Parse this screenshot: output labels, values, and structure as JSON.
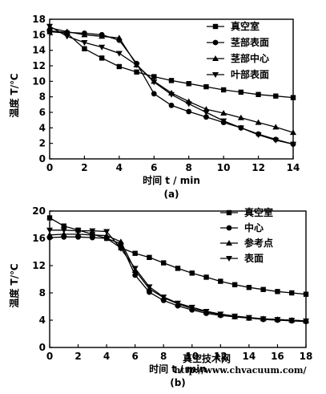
{
  "chart_data": [
    {
      "type": "line",
      "panel": "(a)",
      "xlabel": "时间 t / min",
      "ylabel": "温度 T/℃",
      "xlim": [
        0,
        14
      ],
      "ylim": [
        0,
        18
      ],
      "xticks": [
        "0",
        "2",
        "4",
        "6",
        "8",
        "10",
        "12",
        "14"
      ],
      "yticks": [
        "0",
        "2",
        "4",
        "6",
        "8",
        "10",
        "12",
        "14",
        "16",
        "18"
      ],
      "grid": false,
      "legend_position": "top-right",
      "series": [
        {
          "name": "真空室",
          "marker": "square",
          "x": [
            0,
            1,
            2,
            3,
            4,
            5,
            6,
            7,
            8,
            9,
            10,
            11,
            12,
            13,
            14
          ],
          "y": [
            16.4,
            16.2,
            14.2,
            13.0,
            11.9,
            11.2,
            10.6,
            10.1,
            9.7,
            9.3,
            8.9,
            8.6,
            8.3,
            8.1,
            7.9
          ]
        },
        {
          "name": "茎部表面",
          "marker": "circle",
          "x": [
            0,
            1,
            2,
            3,
            4,
            5,
            6,
            7,
            8,
            9,
            10,
            11,
            12,
            13,
            14
          ],
          "y": [
            16.5,
            16.3,
            16.2,
            16.0,
            15.3,
            12.3,
            8.4,
            6.9,
            6.1,
            5.4,
            4.7,
            4.0,
            3.2,
            2.5,
            1.9
          ]
        },
        {
          "name": "茎部中心",
          "marker": "triangle-up",
          "x": [
            0,
            1,
            2,
            3,
            4,
            5,
            6,
            7,
            8,
            9,
            10,
            11,
            12,
            13,
            14
          ],
          "y": [
            16.9,
            16.4,
            16.0,
            15.8,
            15.6,
            12.1,
            10.0,
            8.5,
            7.4,
            6.4,
            5.9,
            5.3,
            4.7,
            4.1,
            3.4
          ]
        },
        {
          "name": "叶部表面",
          "marker": "triangle-down",
          "x": [
            0,
            1,
            2,
            3,
            4,
            5,
            6,
            7,
            8,
            9,
            10,
            11,
            12,
            13,
            14
          ],
          "y": [
            17.1,
            15.8,
            15.0,
            14.4,
            13.6,
            12.1,
            9.9,
            8.3,
            7.1,
            6.0,
            4.9,
            4.0,
            3.1,
            2.4,
            1.9
          ]
        }
      ]
    },
    {
      "type": "line",
      "panel": "(b)",
      "xlabel": "时间 t / min",
      "ylabel": "温度 T/℃",
      "xlim": [
        0,
        18
      ],
      "ylim": [
        0,
        20
      ],
      "xticks": [
        "0",
        "2",
        "4",
        "6",
        "8",
        "10",
        "12",
        "14",
        "16",
        "18"
      ],
      "yticks": [
        "0",
        "4",
        "8",
        "12",
        "16",
        "20"
      ],
      "grid": false,
      "legend_position": "top-right",
      "series": [
        {
          "name": "真空室",
          "marker": "square",
          "x": [
            0,
            1,
            2,
            3,
            4,
            5,
            6,
            7,
            8,
            9,
            10,
            11,
            12,
            13,
            14,
            15,
            16,
            17,
            18
          ],
          "y": [
            19.0,
            17.8,
            17.2,
            16.6,
            16.0,
            14.6,
            13.8,
            13.2,
            12.4,
            11.6,
            10.9,
            10.3,
            9.7,
            9.2,
            8.8,
            8.5,
            8.2,
            8.0,
            7.8
          ]
        },
        {
          "name": "中心",
          "marker": "circle",
          "x": [
            0,
            1,
            2,
            3,
            4,
            5,
            6,
            7,
            8,
            9,
            10,
            11,
            12,
            13,
            14,
            15,
            16,
            17,
            18
          ],
          "y": [
            16.1,
            16.2,
            16.2,
            16.1,
            16.0,
            15.2,
            10.6,
            8.1,
            6.9,
            6.1,
            5.5,
            5.0,
            4.7,
            4.5,
            4.3,
            4.1,
            4.0,
            3.9,
            3.8
          ]
        },
        {
          "name": "参考点",
          "marker": "triangle-up",
          "x": [
            0,
            1,
            2,
            3,
            4,
            5,
            6,
            7,
            8,
            9,
            10,
            11,
            12,
            13,
            14,
            15,
            16,
            17,
            18
          ],
          "y": [
            16.5,
            16.6,
            16.6,
            16.5,
            16.4,
            15.5,
            11.3,
            8.6,
            7.3,
            6.4,
            5.7,
            5.2,
            4.8,
            4.5,
            4.3,
            4.2,
            4.1,
            4.0,
            3.9
          ]
        },
        {
          "name": "表面",
          "marker": "triangle-down",
          "x": [
            0,
            1,
            2,
            3,
            4,
            5,
            6,
            7,
            8,
            9,
            10,
            11,
            12,
            13,
            14,
            15,
            16,
            17,
            18
          ],
          "y": [
            17.2,
            17.2,
            17.1,
            17.1,
            17.0,
            14.5,
            11.6,
            8.9,
            7.4,
            6.5,
            5.9,
            5.3,
            4.9,
            4.6,
            4.4,
            4.2,
            4.1,
            4.0,
            3.9
          ]
        }
      ]
    }
  ],
  "watermark": {
    "line1": "真空技术网",
    "line2": "http://www.chvacuum.com/",
    "color": "#b01818"
  }
}
